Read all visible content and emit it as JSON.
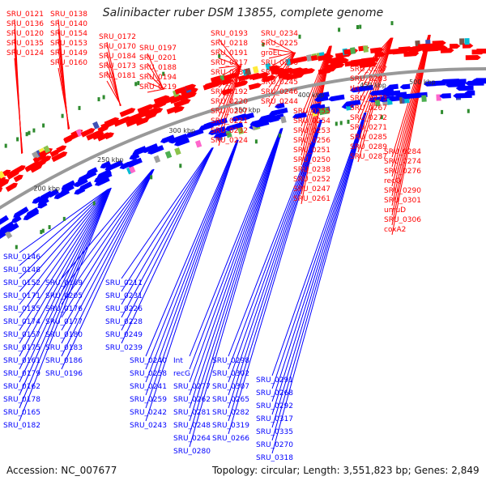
{
  "title": "Salinibacter ruber DSM 13855, complete genome",
  "accession": "Accession: NC_007677",
  "topology": "Topology: circular; Length: 3,551,823 bp; Genes: 2,849",
  "colors": {
    "forward": "#ff0000",
    "reverse": "#0000ff",
    "backbone": "#999999",
    "orf": "#2e8b2e"
  },
  "kbp_ticks": [
    "200 kbp",
    "250 kbp",
    "300 kbp",
    "350 kbp",
    "400 kbp",
    "450 kbp",
    "500 kbp"
  ],
  "forward_labels": [
    "SRU_0121",
    "SRU_0136",
    "SRU_0120",
    "SRU_0135",
    "SRU_0124",
    "SRU_0138",
    "SRU_0140",
    "SRU_0154",
    "SRU_0153",
    "SRU_0149",
    "SRU_0160",
    "SRU_0172",
    "SRU_0170",
    "SRU_0184",
    "SRU_0173",
    "SRU_0181",
    "SRU_0197",
    "SRU_0201",
    "SRU_0188",
    "SRU_0194",
    "SRU_0219",
    "SRU_0193",
    "SRU_0218",
    "SRU_0191",
    "SRU_0217",
    "SRU_0187",
    "SRU_0206",
    "SRU_0192",
    "SRU_0220",
    "SRU_0207",
    "SRU_0221",
    "SRU_0232",
    "SRU_0224",
    "SRU_0234",
    "SRU_0225",
    "groEL",
    "SRU_0236",
    "SRU_0235",
    "SRU_0245",
    "SRU_0246",
    "SRU_0244",
    "SRU_0255",
    "SRU_0254",
    "SRU_0253",
    "SRU_0256",
    "SRU_0251",
    "SRU_0250",
    "SRU_0238",
    "SRU_0252",
    "SRU_0247",
    "SRU_0261",
    "SRU_0257",
    "SRU_0263",
    "tkt",
    "SRU_0273",
    "SRU_0267",
    "SRU_0272",
    "SRU_0271",
    "SRU_0285",
    "SRU_0289",
    "SRU_0287",
    "SRU_0284",
    "SRU_0274",
    "SRU_0276",
    "recQ",
    "SRU_0290",
    "SRU_0301",
    "umuD",
    "SRU_0306",
    "coxA2"
  ],
  "reverse_labels": [
    "SRU_0146",
    "SRU_0148",
    "SRU_0152",
    "SRU_0171",
    "SRU_0155",
    "SRU_0174",
    "SRU_0157",
    "SRU_0175",
    "SRU_0161",
    "SRU_0179",
    "SRU_0162",
    "SRU_0178",
    "SRU_0165",
    "SRU_0182",
    "SRU_0169",
    "SRU_0205",
    "SRU_0176",
    "SRU_0177",
    "SRU_0180",
    "SRU_0183",
    "SRU_0186",
    "SRU_0196",
    "SRU_0211",
    "SRU_0231",
    "SRU_0226",
    "SRU_0228",
    "SRU_0249",
    "SRU_0239",
    "SRU_0240",
    "SRU_0258",
    "SRU_0241",
    "SRU_0259",
    "SRU_0242",
    "SRU_0243",
    "Int",
    "recG",
    "SRU_0277",
    "SRU_0262",
    "SRU_0281",
    "SRU_0248",
    "SRU_0264",
    "SRU_0280",
    "SRU_0298",
    "SRU_0302",
    "SRU_0307",
    "SRU_0265",
    "SRU_0282",
    "SRU_0319",
    "SRU_0266",
    "SRU_0291",
    "SRU_0268",
    "SRU_0292",
    "SRU_0317",
    "SRU_0335",
    "SRU_0270",
    "SRU_0318"
  ]
}
